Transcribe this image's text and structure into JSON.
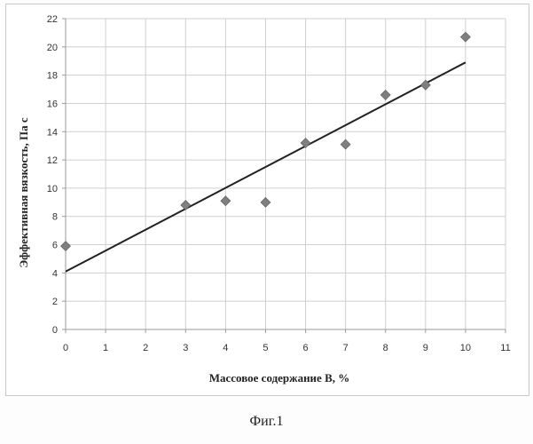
{
  "caption": "Фиг.1",
  "chart_data": {
    "type": "scatter",
    "xlabel": "Массовое содержание  В, %",
    "ylabel": "Эффективная вязкость, Па  с",
    "xlim": [
      0,
      11
    ],
    "ylim": [
      0,
      22
    ],
    "x_ticks": [
      0,
      1,
      2,
      3,
      4,
      5,
      6,
      7,
      8,
      9,
      10,
      11
    ],
    "y_ticks": [
      0,
      2,
      4,
      6,
      8,
      10,
      12,
      14,
      16,
      18,
      20,
      22
    ],
    "grid": true,
    "legend": "none",
    "series": [
      {
        "marker": "diamond",
        "color": "#7f7f7f",
        "points": [
          {
            "x": 0,
            "y": 5.9
          },
          {
            "x": 3,
            "y": 8.8
          },
          {
            "x": 4,
            "y": 9.1
          },
          {
            "x": 5,
            "y": 9.0
          },
          {
            "x": 6,
            "y": 13.2
          },
          {
            "x": 7,
            "y": 13.1
          },
          {
            "x": 8,
            "y": 16.6
          },
          {
            "x": 9,
            "y": 17.3
          },
          {
            "x": 10,
            "y": 20.7
          }
        ]
      }
    ],
    "trendline": {
      "type": "linear",
      "color": "#222222",
      "points": [
        {
          "x": 0,
          "y": 4.1
        },
        {
          "x": 10,
          "y": 18.9
        }
      ]
    }
  }
}
